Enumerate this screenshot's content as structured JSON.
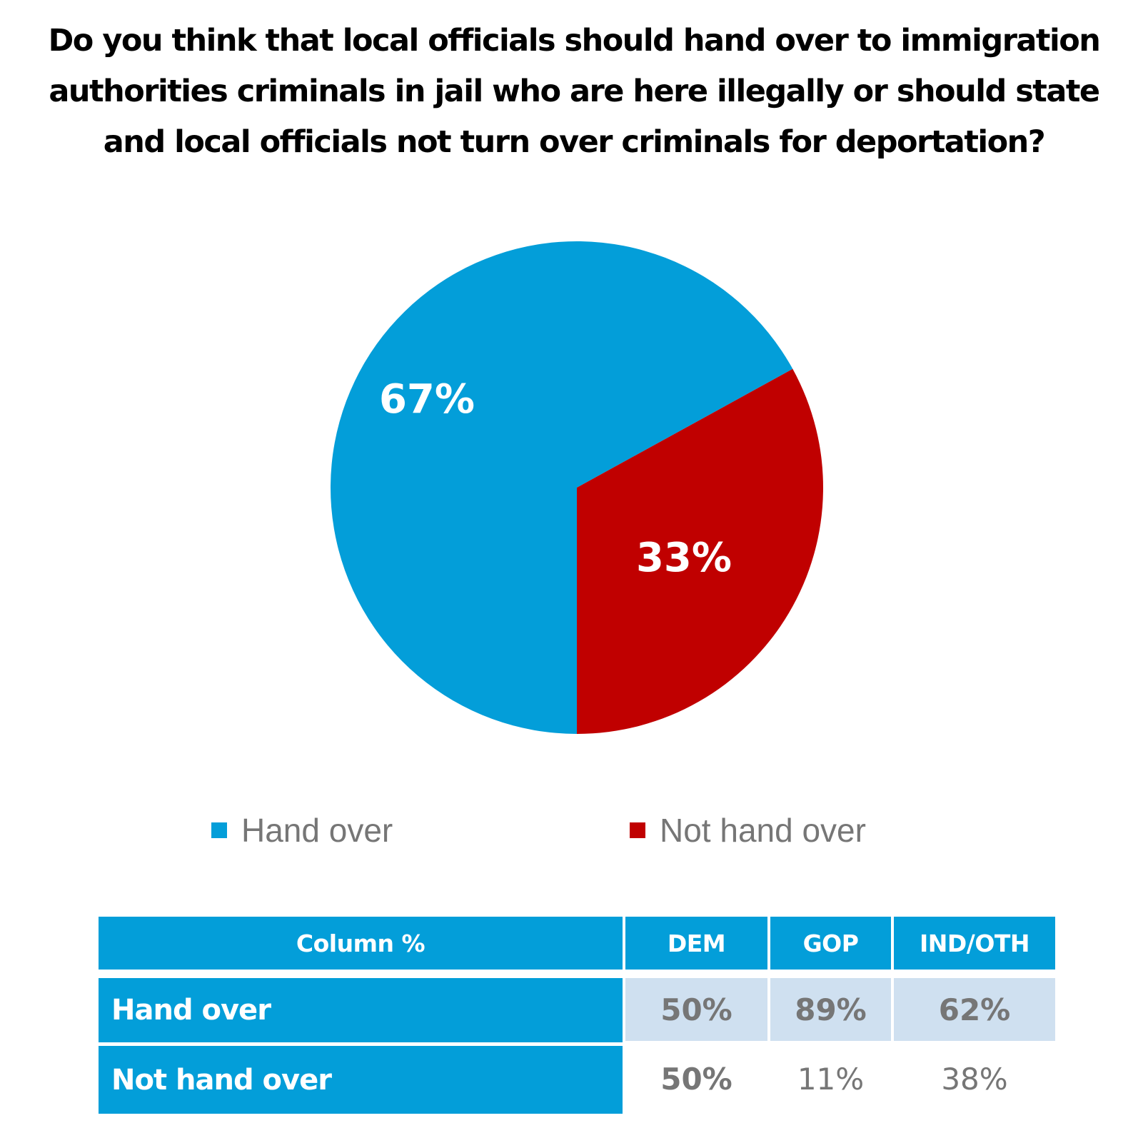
{
  "chart_data": {
    "type": "pie",
    "title": "Do you think that local officials should hand over to immigration authorities criminals in jail who are here illegally or should state and local officials not turn over criminals for deportation?",
    "title_lines": [
      "Do you think that local officials should hand over to immigration",
      "authorities criminals in jail who are here illegally or should state",
      "and local officials not turn over criminals for deportation?"
    ],
    "slices": [
      {
        "label": "Hand over",
        "value": 67,
        "display": "67%",
        "color": "#039ED9"
      },
      {
        "label": "Not hand over",
        "value": 33,
        "display": "33%",
        "color": "#C00000"
      }
    ],
    "legend_position": "bottom"
  },
  "table": {
    "header": [
      "Column %",
      "DEM",
      "GOP",
      "IND/OTH"
    ],
    "rows": [
      {
        "label": "Hand over",
        "values": [
          "50%",
          "89%",
          "62%"
        ]
      },
      {
        "label": "Not hand over",
        "values": [
          "50%",
          "11%",
          "38%"
        ]
      }
    ]
  }
}
